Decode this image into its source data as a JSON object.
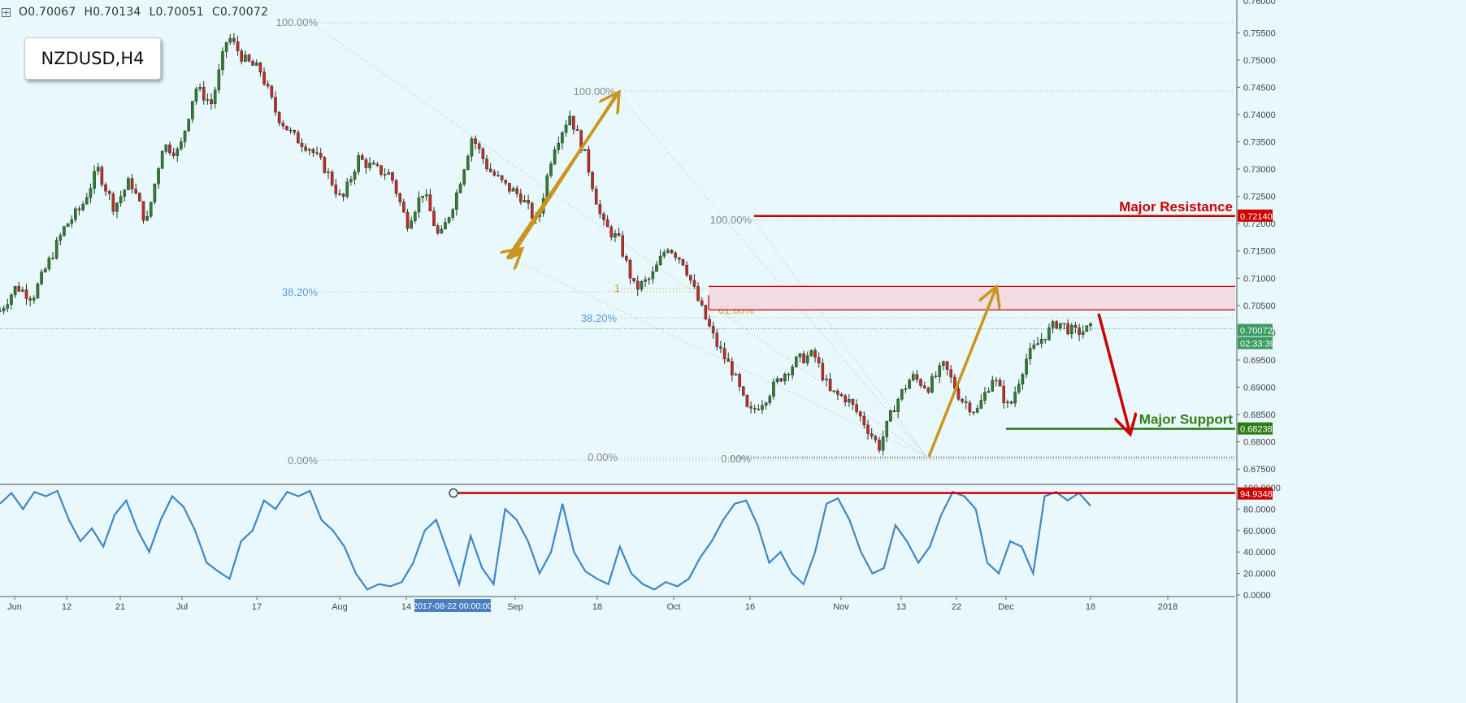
{
  "header": {
    "open": "O0.70067",
    "high": "H0.70134",
    "low": "L0.70051",
    "close": "C0.70072"
  },
  "symbol": "NZDUSD,H4",
  "colors": {
    "background": "#e9f8fc",
    "bull": "#2e7d32",
    "bear": "#c62828",
    "resistance": "#cc0000",
    "support": "#2e7d13",
    "arrow_gold": "#c8961e",
    "arrow_red": "#cc0000",
    "zone_fill": "#f3d6dc",
    "osc_line": "#3f86c6",
    "fib_blue": "#5b9bd5",
    "fib_gray": "#8a8a8a"
  },
  "chart_data": {
    "type": "candlestick",
    "instrument": "NZDUSD",
    "timeframe": "H4",
    "price_axis": {
      "ylim": [
        0.6725,
        0.761
      ],
      "ticks": [
        "0.75500",
        "0.75000",
        "0.74500",
        "0.74000",
        "0.73500",
        "0.73000",
        "0.72500",
        "0.72000",
        "0.71500",
        "0.71000",
        "0.70500",
        "0.70000",
        "0.69500",
        "0.69000",
        "0.68500",
        "0.68000",
        "0.67500"
      ],
      "partial_top_tick": "0.76000"
    },
    "x_axis_labels": [
      "Jun",
      "12",
      "21",
      "Jul",
      "17",
      "Aug",
      "14",
      "Sep",
      "18",
      "Oct",
      "16",
      "Nov",
      "13",
      "22",
      "Dec",
      "18",
      "2018"
    ],
    "crosshair_date": "2017-08-22 00:00:00",
    "price_path": [
      [
        0.704,
        0.7085
      ],
      [
        0.7065,
        0.713
      ],
      [
        0.7195,
        0.723
      ],
      [
        0.73,
        0.723
      ],
      [
        0.728,
        0.72
      ],
      [
        0.7345,
        0.733
      ],
      [
        0.745,
        0.742
      ],
      [
        0.7545,
        0.75
      ],
      [
        0.748,
        0.74
      ],
      [
        0.736,
        0.734
      ],
      [
        0.73,
        0.724
      ],
      [
        0.732,
        0.73
      ],
      [
        0.729,
        0.72
      ],
      [
        0.726,
        0.717
      ],
      [
        0.725,
        0.736
      ],
      [
        0.73,
        0.727
      ],
      [
        0.725,
        0.72
      ],
      [
        0.734,
        0.74
      ],
      [
        0.732,
        0.72
      ],
      [
        0.717,
        0.708
      ],
      [
        0.71,
        0.716
      ],
      [
        0.713,
        0.705
      ],
      [
        0.698,
        0.693
      ],
      [
        0.685,
        0.688
      ],
      [
        0.692,
        0.695
      ],
      [
        0.696,
        0.689
      ],
      [
        0.688,
        0.684
      ],
      [
        0.679,
        0.687
      ],
      [
        0.692,
        0.69
      ],
      [
        0.694,
        0.688
      ],
      [
        0.6855,
        0.692
      ],
      [
        0.686,
        0.695
      ],
      [
        0.699,
        0.702
      ],
      [
        0.7,
        0.7007
      ]
    ],
    "levels": [
      {
        "name": "Major Resistance",
        "value": 0.7214,
        "label": "0.72140"
      },
      {
        "name": "Major Support",
        "value": 0.68238,
        "label": "0.68238"
      },
      {
        "name": "last price",
        "value": 0.70072,
        "label": "0.70072",
        "countdown": "02:33:39"
      }
    ],
    "zone": {
      "top": 0.7085,
      "bottom": 0.7042
    },
    "fib_labels": [
      {
        "text": "100.00%",
        "x_date": "Jul-27",
        "price": 0.756
      },
      {
        "text": "38.20%",
        "x_date": "Jun-18",
        "price": 0.70775
      },
      {
        "text": "0.00%",
        "x_date": "Jun-18",
        "price": 0.678
      },
      {
        "text": "100.00%",
        "x_date": "Aug-24",
        "price": 0.7436
      },
      {
        "text": "38.20%",
        "x_date": "Aug-23",
        "price": 0.703
      },
      {
        "text": "0.00%",
        "x_date": "Aug-23",
        "price": 0.6785
      },
      {
        "text": "100.00%",
        "x_date": "Oct-13",
        "price": 0.7205
      },
      {
        "text": "61.80%",
        "x_date": "Oct-10",
        "price": 0.7039
      },
      {
        "text": "0.00%",
        "x_date": "Oct-10",
        "price": 0.6782
      },
      {
        "text": "1",
        "x_date": "Aug-25",
        "price": 0.7085
      }
    ],
    "annotations": {
      "resistance": "Major Resistance",
      "support": "Major Support"
    },
    "oscillator": {
      "ylim": [
        0,
        100
      ],
      "ticks": [
        "100.0000",
        "80.0000",
        "60.0000",
        "40.0000",
        "20.0000",
        "0.0000"
      ],
      "level": 94.9348,
      "level_label": "94.9348",
      "values": [
        85,
        95,
        80,
        96,
        92,
        97,
        70,
        50,
        62,
        45,
        75,
        88,
        60,
        40,
        70,
        92,
        82,
        60,
        30,
        22,
        15,
        50,
        60,
        88,
        80,
        96,
        92,
        97,
        70,
        60,
        45,
        20,
        5,
        10,
        8,
        12,
        30,
        60,
        70,
        40,
        10,
        55,
        25,
        10,
        80,
        70,
        50,
        20,
        40,
        85,
        40,
        22,
        15,
        10,
        45,
        20,
        10,
        5,
        12,
        8,
        15,
        35,
        50,
        70,
        85,
        88,
        65,
        30,
        40,
        20,
        10,
        40,
        85,
        90,
        70,
        40,
        20,
        25,
        65,
        50,
        30,
        45,
        75,
        96,
        92,
        80,
        30,
        20,
        50,
        45,
        20,
        92,
        96,
        88,
        95,
        83
      ]
    }
  }
}
